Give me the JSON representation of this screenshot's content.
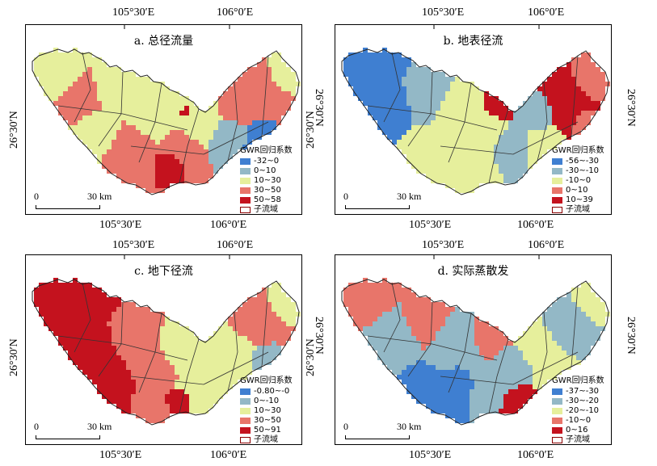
{
  "coords": {
    "lon_left": "105°30′E",
    "lon_right": "106°0′E",
    "lat": "26°30′N"
  },
  "panels": [
    {
      "title": "a. 总径流量",
      "legend_title": "GWR回归系数",
      "classes": [
        {
          "label": "-32~0",
          "color": "#3f7fd1"
        },
        {
          "label": "0~10",
          "color": "#93b8c6"
        },
        {
          "label": "10~30",
          "color": "#e6ef9c"
        },
        {
          "label": "30~50",
          "color": "#e8756a"
        },
        {
          "label": "50~58",
          "color": "#c4121e"
        }
      ],
      "boundary_label": "子流域",
      "scale_start": "0",
      "scale_end": "30 km"
    },
    {
      "title": "b. 地表径流",
      "legend_title": "GWR回归系数",
      "classes": [
        {
          "label": "-56~-30",
          "color": "#3f7fd1"
        },
        {
          "label": "-30~-10",
          "color": "#93b8c6"
        },
        {
          "label": "-10~0",
          "color": "#e6ef9c"
        },
        {
          "label": "0~10",
          "color": "#e8756a"
        },
        {
          "label": "10~39",
          "color": "#c4121e"
        }
      ],
      "boundary_label": "子流域",
      "scale_start": "0",
      "scale_end": "30 km"
    },
    {
      "title": "c. 地下径流",
      "legend_title": "GWR回归系数",
      "classes": [
        {
          "label": "-0.80~-0",
          "color": "#3f7fd1"
        },
        {
          "label": "0~-10",
          "color": "#93b8c6"
        },
        {
          "label": "10~30",
          "color": "#e6ef9c"
        },
        {
          "label": "30~50",
          "color": "#e8756a"
        },
        {
          "label": "50~91",
          "color": "#c4121e"
        }
      ],
      "boundary_label": "子流域",
      "scale_start": "0",
      "scale_end": "30 km"
    },
    {
      "title": "d. 实际蒸散发",
      "legend_title": "GWR回归系数",
      "classes": [
        {
          "label": "-37~-30",
          "color": "#3f7fd1"
        },
        {
          "label": "-30~-20",
          "color": "#93b8c6"
        },
        {
          "label": "-20~-10",
          "color": "#e6ef9c"
        },
        {
          "label": "-10~0",
          "color": "#e8756a"
        },
        {
          "label": "0~16",
          "color": "#c4121e"
        }
      ],
      "boundary_label": "子流域",
      "scale_start": "0",
      "scale_end": "30 km"
    }
  ]
}
